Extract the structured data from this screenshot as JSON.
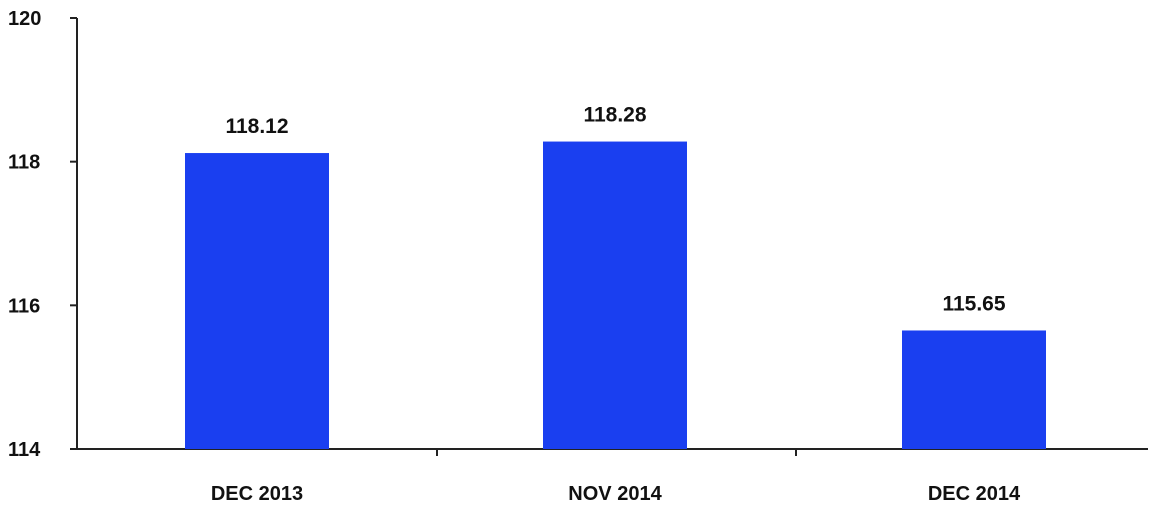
{
  "chart_data": {
    "type": "bar",
    "title": "",
    "xlabel": "",
    "ylabel": "",
    "categories": [
      "DEC 2013",
      "NOV 2014",
      "DEC 2014"
    ],
    "values": [
      118.12,
      118.28,
      115.65
    ],
    "data_labels": [
      "118.12",
      "118.28",
      "115.65"
    ],
    "ylim": [
      114,
      120
    ],
    "yticks": [
      114,
      116,
      118,
      120
    ],
    "ytick_labels": [
      "114",
      "116",
      "118",
      "120"
    ],
    "grid": false,
    "legend": "none",
    "bar_color": "#1a3ff0",
    "axis_color": "#222222"
  }
}
